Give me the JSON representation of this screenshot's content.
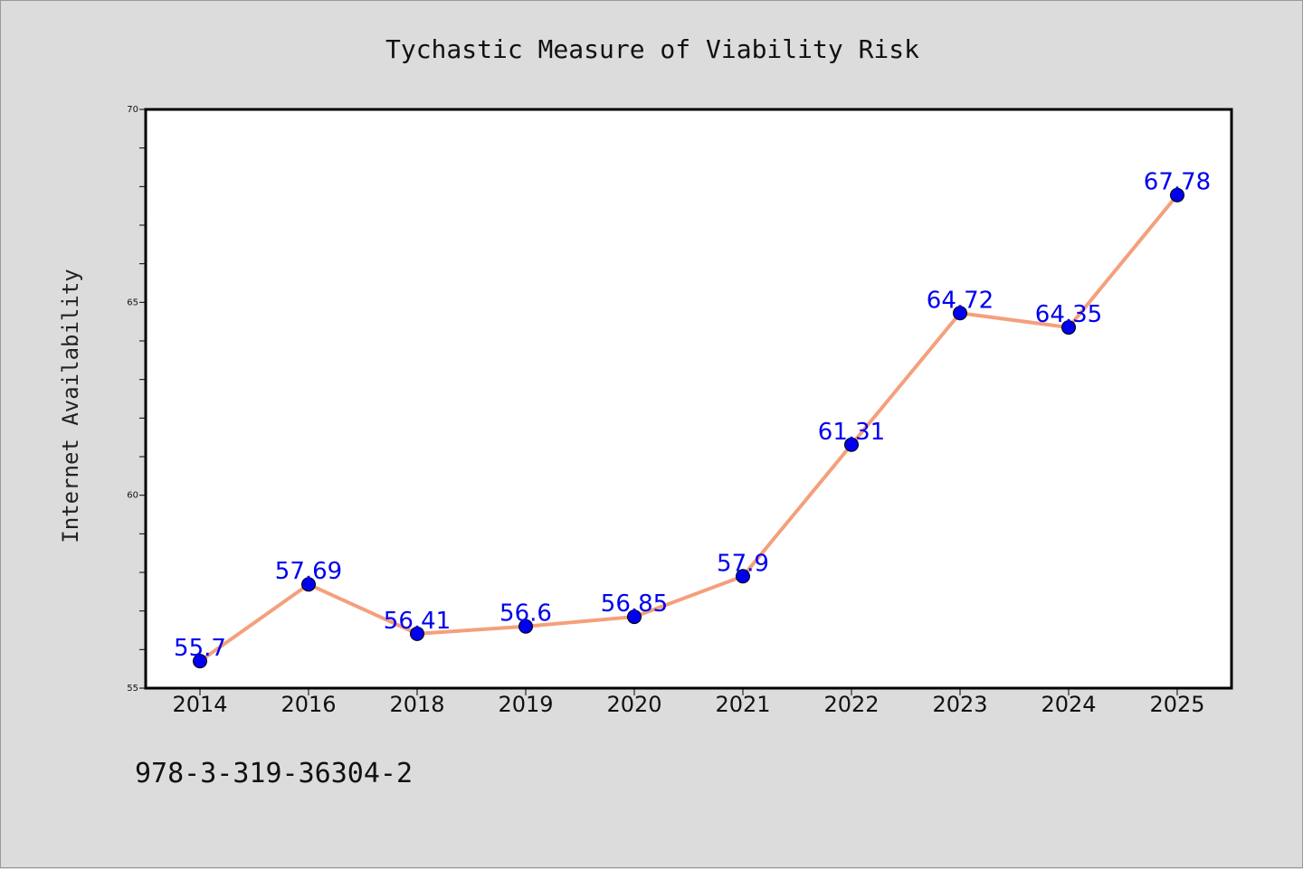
{
  "chart_data": {
    "type": "line",
    "title": "Tychastic Measure of Viability Risk",
    "xlabel": "",
    "ylabel": "Internet Availability",
    "categories": [
      "2014",
      "2016",
      "2018",
      "2019",
      "2020",
      "2021",
      "2022",
      "2023",
      "2024",
      "2025"
    ],
    "values": [
      55.7,
      57.69,
      56.41,
      56.6,
      56.85,
      57.9,
      61.31,
      64.72,
      64.35,
      67.78
    ],
    "data_labels": [
      "55.7",
      "57.69",
      "56.41",
      "56.6",
      "56.85",
      "57.9",
      "61.31",
      "64.72",
      "64.35",
      "67.78"
    ],
    "ylim": [
      55,
      70
    ],
    "yticks": [
      55,
      60,
      65,
      70
    ],
    "ytick_labels": [
      "55",
      "60",
      "65",
      "70"
    ],
    "grid": false,
    "line_color": "#f4a07c",
    "marker_color": "#0000ee",
    "label_color": "#0000ee"
  },
  "footnote": "978-3-319-36304-2"
}
